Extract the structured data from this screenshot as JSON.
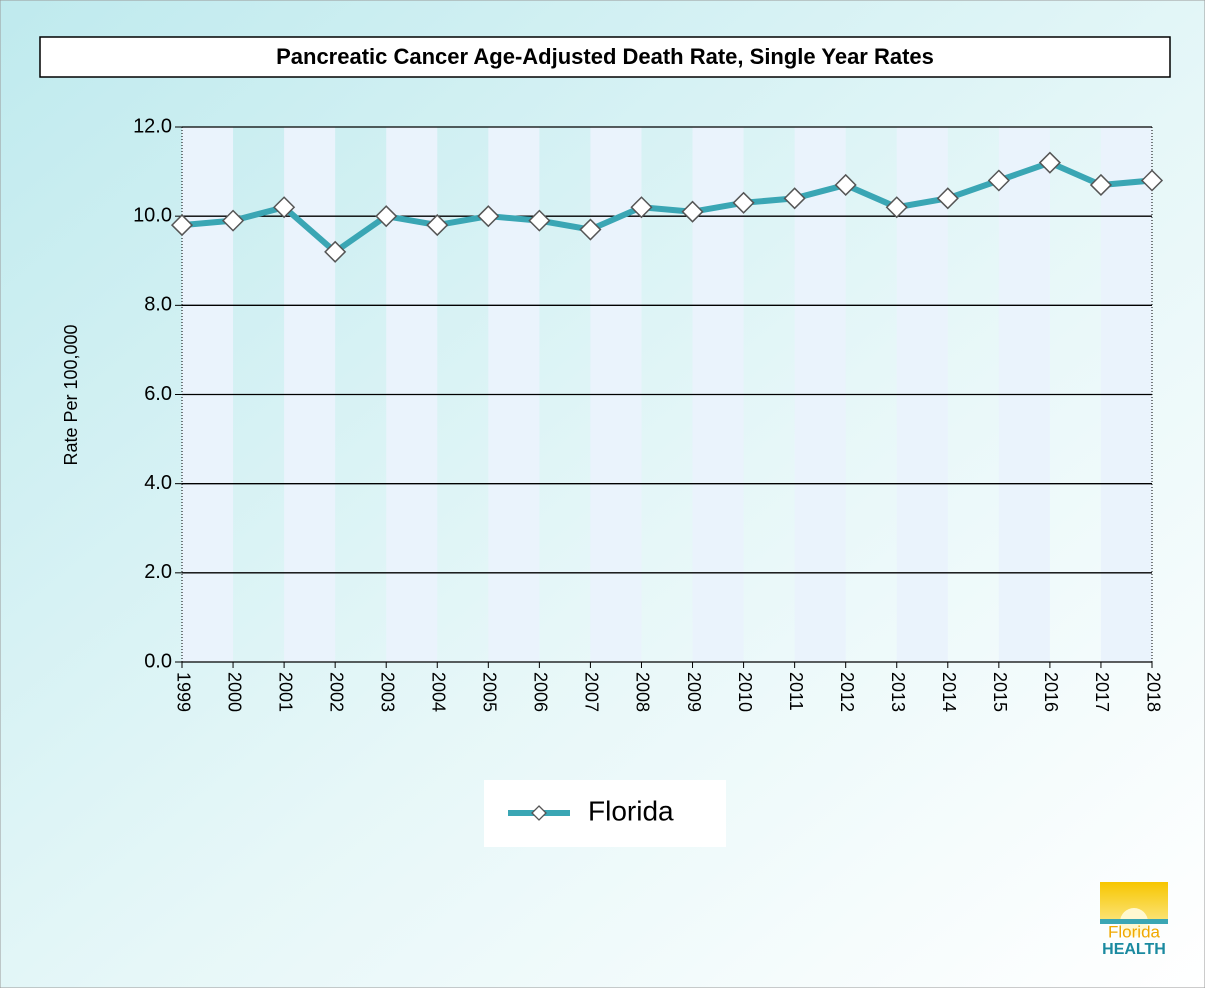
{
  "chart_data": {
    "type": "line",
    "title": "Pancreatic Cancer Age-Adjusted Death Rate, Single Year Rates",
    "ylabel": "Rate Per 100,000",
    "categories": [
      "1999",
      "2000",
      "2001",
      "2002",
      "2003",
      "2004",
      "2005",
      "2006",
      "2007",
      "2008",
      "2009",
      "2010",
      "2011",
      "2012",
      "2013",
      "2014",
      "2015",
      "2016",
      "2017",
      "2018"
    ],
    "series": [
      {
        "name": "Florida",
        "color": "#3aa6b4",
        "values": [
          9.8,
          9.9,
          10.2,
          9.2,
          10.0,
          9.8,
          10.0,
          9.9,
          9.7,
          10.2,
          10.1,
          10.3,
          10.4,
          10.7,
          10.2,
          10.4,
          10.8,
          11.2,
          10.7,
          10.8
        ]
      }
    ],
    "ylim": [
      0,
      12
    ],
    "yticks": [
      {
        "value": 0,
        "label": "0.0"
      },
      {
        "value": 2,
        "label": "2.0"
      },
      {
        "value": 4,
        "label": "4.0"
      },
      {
        "value": 6,
        "label": "6.0"
      },
      {
        "value": 8,
        "label": "8.0"
      },
      {
        "value": 10,
        "label": "10.0"
      },
      {
        "value": 12,
        "label": "12.0"
      }
    ],
    "grid": true,
    "legend": "bottom"
  },
  "logo": {
    "line1": "Florida",
    "line2": "HEALTH"
  }
}
